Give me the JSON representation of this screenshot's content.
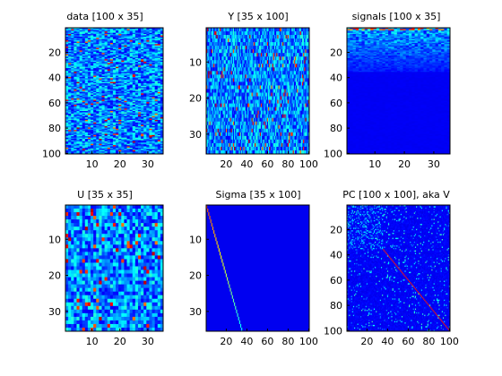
{
  "figure": {
    "background": "#ffffff",
    "colormap": "jet"
  },
  "chart_data": [
    {
      "type": "heatmap",
      "title": "data [100 x 35]",
      "shape": [
        100,
        35
      ],
      "pattern": "noise",
      "x_ticks": [
        10,
        20,
        30
      ],
      "y_ticks": [
        20,
        40,
        60,
        80,
        100
      ],
      "xlim": [
        0.5,
        35.5
      ],
      "ylim": [
        0.5,
        100.5
      ]
    },
    {
      "type": "heatmap",
      "title": "Y [35 x 100]",
      "shape": [
        35,
        100
      ],
      "pattern": "noise",
      "x_ticks": [
        20,
        40,
        60,
        80,
        100
      ],
      "y_ticks": [
        10,
        20,
        30
      ],
      "xlim": [
        0.5,
        100.5
      ],
      "ylim": [
        0.5,
        35.5
      ]
    },
    {
      "type": "heatmap",
      "title": "signals [100 x 35]",
      "shape": [
        100,
        35
      ],
      "pattern": "top-rows-only",
      "x_ticks": [
        10,
        20,
        30
      ],
      "y_ticks": [
        20,
        40,
        60,
        80,
        100
      ],
      "xlim": [
        0.5,
        35.5
      ],
      "ylim": [
        0.5,
        100.5
      ]
    },
    {
      "type": "heatmap",
      "title": "U [35 x 35]",
      "shape": [
        35,
        35
      ],
      "pattern": "noise",
      "x_ticks": [
        10,
        20,
        30
      ],
      "y_ticks": [
        10,
        20,
        30
      ],
      "xlim": [
        0.5,
        35.5
      ],
      "ylim": [
        0.5,
        35.5
      ]
    },
    {
      "type": "heatmap",
      "title": "Sigma [35 x 100]",
      "shape": [
        35,
        100
      ],
      "pattern": "diagonal",
      "x_ticks": [
        20,
        40,
        60,
        80,
        100
      ],
      "y_ticks": [
        10,
        20,
        30
      ],
      "xlim": [
        0.5,
        100.5
      ],
      "ylim": [
        0.5,
        35.5
      ]
    },
    {
      "type": "heatmap",
      "title": "PC [100 x 100], aka V",
      "shape": [
        100,
        100
      ],
      "pattern": "sparse-noise-with-diagonal-from-35",
      "x_ticks": [
        20,
        40,
        60,
        80,
        100
      ],
      "y_ticks": [
        20,
        40,
        60,
        80,
        100
      ],
      "xlim": [
        0.5,
        100.5
      ],
      "ylim": [
        0.5,
        100.5
      ]
    }
  ]
}
